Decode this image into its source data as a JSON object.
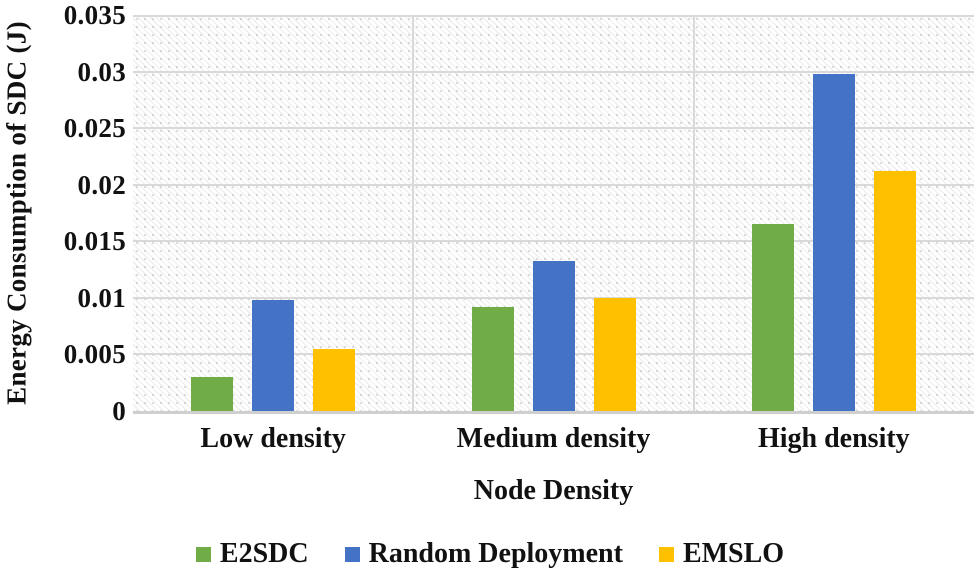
{
  "figure": {
    "background": "#ffffff",
    "text_color": "#111111",
    "gridline_color": "#d9d9d9",
    "axis_line_color": "#cfcfcf"
  },
  "chart_data": {
    "type": "bar",
    "title": "",
    "xlabel": "Node Density",
    "ylabel": "Energy Consumption of SDC (J)",
    "categories": [
      "Low density",
      "Medium density",
      "High density"
    ],
    "series": [
      {
        "name": "E2SDC",
        "color": "#70AD47",
        "values": [
          0.003,
          0.0092,
          0.0165
        ]
      },
      {
        "name": "Random Deployment",
        "color": "#4472C4",
        "values": [
          0.0098,
          0.0133,
          0.0298
        ]
      },
      {
        "name": "EMSLO",
        "color": "#FFC000",
        "values": [
          0.0055,
          0.01,
          0.0212
        ]
      }
    ],
    "ylim": [
      0,
      0.035
    ],
    "yticks": [
      "0",
      "0.005",
      "0.01",
      "0.015",
      "0.02",
      "0.025",
      "0.03",
      "0.035"
    ],
    "grid": "horizontal gridlines + vertical category separators, hatched plot background",
    "legend_position": "bottom"
  }
}
